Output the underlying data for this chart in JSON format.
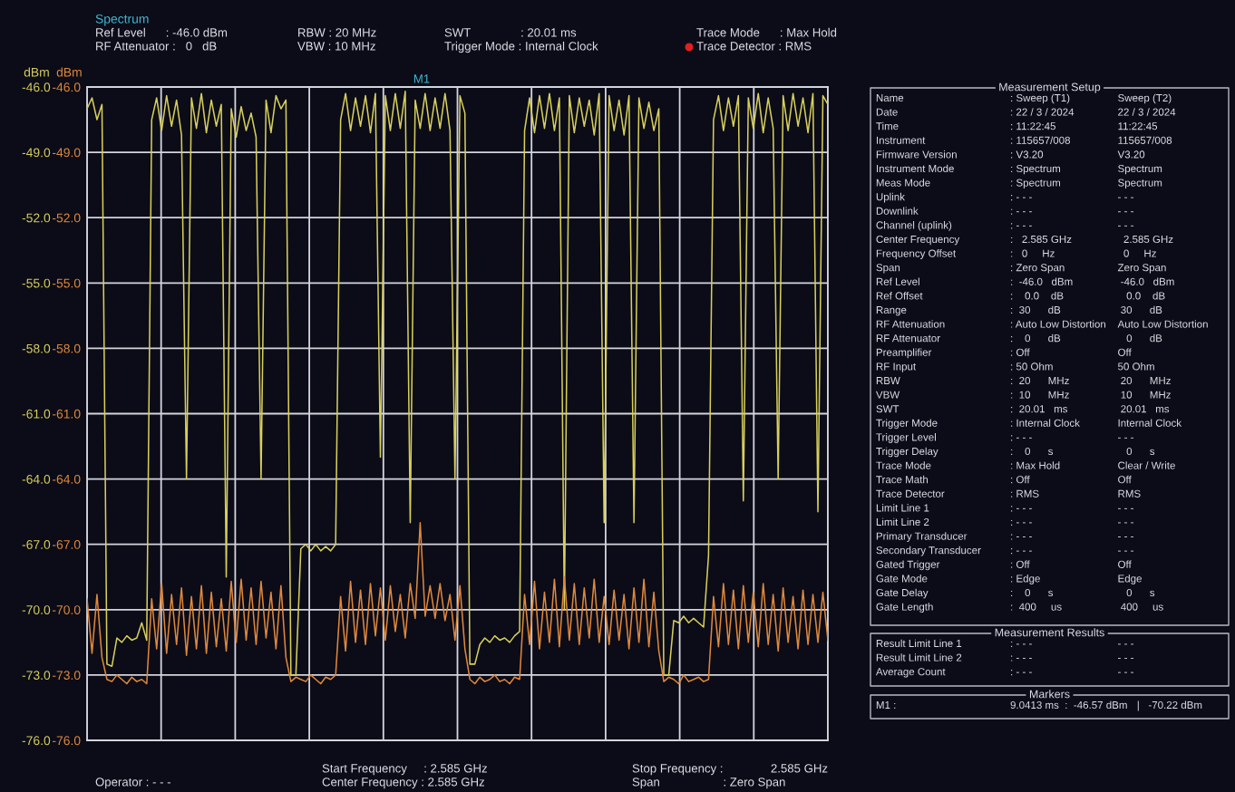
{
  "chart_data": [
    {
      "type": "line",
      "title": "Spectrum",
      "categories": [
        null,
        null,
        null,
        null,
        null,
        null,
        null,
        null,
        null,
        null,
        null,
        null,
        null,
        null,
        null,
        null,
        null,
        null,
        null,
        null,
        null,
        null,
        null,
        null,
        null,
        null,
        null,
        null,
        null,
        null,
        null,
        null,
        null,
        null,
        null,
        null,
        null,
        null,
        null,
        null,
        null,
        null,
        null,
        null,
        null,
        null,
        null,
        null,
        null,
        null,
        null,
        null,
        null,
        null,
        null,
        null,
        null,
        null,
        null,
        null,
        null,
        null,
        null,
        null,
        null,
        null,
        null,
        null,
        null,
        null,
        null,
        null,
        null,
        null,
        null,
        null,
        null,
        null,
        null,
        null,
        null,
        null,
        null,
        null,
        null,
        null,
        null,
        null,
        null,
        null,
        null,
        null,
        null,
        null,
        null,
        null,
        null,
        null,
        null,
        null,
        null,
        null,
        null,
        null,
        null,
        null,
        null,
        null,
        null,
        null,
        null,
        null,
        null,
        null,
        null,
        null,
        null,
        null,
        null,
        null,
        null,
        null,
        null,
        null,
        null,
        null,
        null,
        null,
        null,
        null,
        null,
        null,
        null,
        null,
        null,
        null,
        null,
        null,
        null,
        null,
        null,
        null,
        null,
        null,
        null,
        null,
        null,
        null,
        null,
        null
      ],
      "series": [
        {
          "color": "#d8cf5a",
          "values": [
            -47.0,
            -46.5,
            -47.5,
            -46.8,
            -72.5,
            -72.6,
            -71.3,
            -71.5,
            -71.2,
            -71.4,
            -71.3,
            -70.6,
            -71.4,
            -47.5,
            -46.5,
            -48.0,
            -46.4,
            -47.8,
            -46.6,
            -48.2,
            -64.0,
            -46.5,
            -47.9,
            -46.3,
            -48.1,
            -46.6,
            -47.8,
            -46.8,
            -68.5,
            -47.0,
            -48.3,
            -46.9,
            -48.0,
            -47.2,
            -48.3,
            -64.0,
            -46.6,
            -48.1,
            -46.4,
            -47.0,
            -46.6,
            -73.0,
            -73.0,
            -67.2,
            -67.0,
            -67.3,
            -67.0,
            -67.3,
            -67.1,
            -67.3,
            -67.0,
            -47.5,
            -46.3,
            -48.0,
            -46.5,
            -47.8,
            -46.4,
            -48.1,
            -46.3,
            -63.0,
            -46.4,
            -48.0,
            -46.3,
            -47.9,
            -46.2,
            -66.0,
            -46.6,
            -47.9,
            -46.3,
            -48.0,
            -46.5,
            -47.9,
            -46.3,
            -48.0,
            -64.0,
            -46.4,
            -47.2,
            -72.5,
            -72.5,
            -71.6,
            -71.3,
            -71.5,
            -71.2,
            -71.4,
            -71.3,
            -71.5,
            -71.2,
            -71.0,
            -48.0,
            -46.5,
            -48.1,
            -46.4,
            -47.9,
            -46.3,
            -48.0,
            -46.5,
            -70.0,
            -46.4,
            -48.1,
            -46.5,
            -47.8,
            -46.6,
            -48.2,
            -46.3,
            -66.0,
            -46.4,
            -48.0,
            -46.6,
            -48.2,
            -46.4,
            -66.0,
            -46.5,
            -47.9,
            -46.7,
            -48.0,
            -47.0,
            -73.0,
            -73.0,
            -70.5,
            -70.6,
            -70.3,
            -70.6,
            -70.4,
            -70.6,
            -70.8,
            -67.5,
            -47.5,
            -46.4,
            -48.0,
            -46.5,
            -47.8,
            -46.4,
            -65.0,
            -46.5,
            -47.9,
            -46.3,
            -48.1,
            -46.5,
            -47.9,
            -64.0,
            -46.4,
            -48.0,
            -46.3,
            -47.8,
            -46.5,
            -48.1,
            -46.3,
            -65.5,
            -46.4,
            -46.8
          ]
        },
        {
          "color": "#e0883a",
          "axis": "y2",
          "values": [
            -69.5,
            -72.0,
            -69.3,
            -72.2,
            -73.2,
            -73.3,
            -73.0,
            -73.2,
            -73.4,
            -73.1,
            -73.3,
            -73.2,
            -73.4,
            -69.5,
            -71.8,
            -68.8,
            -72.0,
            -69.3,
            -71.6,
            -69.0,
            -72.1,
            -69.4,
            -71.8,
            -68.9,
            -72.0,
            -69.2,
            -71.7,
            -69.5,
            -71.9,
            -68.7,
            -71.5,
            -68.6,
            -71.4,
            -69.0,
            -71.6,
            -68.7,
            -71.3,
            -69.2,
            -71.8,
            -68.9,
            -72.2,
            -73.3,
            -73.1,
            -73.2,
            -73.3,
            -73.0,
            -73.2,
            -73.4,
            -73.1,
            -73.2,
            -73.0,
            -69.4,
            -71.9,
            -68.7,
            -71.5,
            -69.1,
            -71.6,
            -68.8,
            -71.2,
            -69.0,
            -71.4,
            -68.9,
            -71.0,
            -69.3,
            -71.3,
            -68.8,
            -70.4,
            -66.0,
            -70.3,
            -68.9,
            -70.4,
            -68.8,
            -70.5,
            -69.3,
            -71.4,
            -68.9,
            -71.8,
            -73.2,
            -73.4,
            -73.1,
            -73.3,
            -73.2,
            -73.0,
            -73.3,
            -73.2,
            -73.4,
            -73.1,
            -73.2,
            -69.3,
            -71.6,
            -68.7,
            -71.8,
            -69.2,
            -71.5,
            -68.6,
            -71.7,
            -68.5,
            -71.4,
            -68.8,
            -71.6,
            -69.0,
            -71.3,
            -68.6,
            -71.5,
            -69.4,
            -71.6,
            -69.1,
            -71.4,
            -69.3,
            -71.8,
            -69.0,
            -71.5,
            -68.6,
            -71.7,
            -69.2,
            -71.9,
            -73.3,
            -73.1,
            -73.2,
            -73.4,
            -73.0,
            -73.3,
            -73.2,
            -73.1,
            -73.3,
            -73.2,
            -69.4,
            -71.7,
            -68.8,
            -71.6,
            -69.1,
            -71.8,
            -68.9,
            -71.5,
            -69.2,
            -71.7,
            -68.8,
            -71.6,
            -69.3,
            -71.9,
            -69.0,
            -71.5,
            -69.4,
            -71.8,
            -69.1,
            -71.6,
            -69.3,
            -71.5,
            -69.2,
            -71.4
          ]
        }
      ],
      "ylabel": "dBm",
      "y2label": "dBm",
      "ylim": [
        -76,
        -46
      ],
      "yticks": [
        {
          "value": -46,
          "label": "-46.0"
        },
        {
          "value": -49,
          "label": "-49.0"
        },
        {
          "value": -52,
          "label": "-52.0"
        },
        {
          "value": -55,
          "label": "-55.0"
        },
        {
          "value": -58,
          "label": "-58.0"
        },
        {
          "value": -61,
          "label": "-61.0"
        },
        {
          "value": -64,
          "label": "-64.0"
        },
        {
          "value": -67,
          "label": "-67.0"
        },
        {
          "value": -70,
          "label": "-70.0"
        },
        {
          "value": -73,
          "label": "-73.0"
        },
        {
          "value": -76,
          "label": "-76.0"
        }
      ],
      "y2lim": [
        -76,
        -46
      ],
      "y2ticks": [
        {
          "value": -46,
          "label": "-46.0"
        },
        {
          "value": -49,
          "label": "-49.0"
        },
        {
          "value": -52,
          "label": "-52.0"
        },
        {
          "value": -55,
          "label": "-55.0"
        },
        {
          "value": -58,
          "label": "-58.0"
        },
        {
          "value": -61,
          "label": "-61.0"
        },
        {
          "value": -64,
          "label": "-64.0"
        },
        {
          "value": -67,
          "label": "-67.0"
        },
        {
          "value": -70,
          "label": "-70.0"
        },
        {
          "value": -73,
          "label": "-73.0"
        },
        {
          "value": -76,
          "label": "-76.0"
        }
      ],
      "grid": true,
      "tick_labels": "y",
      "line_style": "solid",
      "marker": "none",
      "annotations": [
        "Ref Level      : -46.0 dBm",
        "RF Attenuator :   0   dB",
        "RBW : 20 MHz",
        "VBW : 10 MHz",
        "SWT               : 20.01 ms",
        "Trigger Mode : Internal Clock",
        "Trace Mode      : Max Hold",
        "Trace Detector : RMS",
        "M1",
        "Start Frequency     : 2.585 GHz",
        "Center Frequency : 2.585 GHz",
        "Stop Frequency :",
        "2.585 GHz",
        "Span                   : Zero Span",
        "Operator : - - -"
      ]
    },
    {
      "type": "other",
      "title": "Measurement Setup",
      "annotations": [
        "Name",
        ": Sweep (T1)",
        "Sweep (T2)",
        "Date",
        ": 22 / 3 / 2024",
        "22 / 3 / 2024",
        "Time",
        ": 11:22:45",
        "11:22:45",
        "Instrument",
        ": 115657/008",
        "115657/008",
        "Firmware Version",
        ": V3.20",
        "V3.20",
        "Instrument Mode",
        ": Spectrum",
        "Spectrum",
        "Meas Mode",
        ": Spectrum",
        "Spectrum",
        "Uplink",
        ": - - -",
        "- - -",
        "Downlink",
        ": - - -",
        "- - -",
        "Channel (uplink)",
        ": - - -",
        "- - -",
        "Center Frequency",
        ":   2.585 GHz",
        "  2.585 GHz",
        "Frequency Offset",
        ":   0     Hz",
        "  0     Hz",
        "Span",
        ": Zero Span",
        "Zero Span",
        "Ref Level",
        ":  -46.0   dBm",
        " -46.0   dBm",
        "Ref Offset",
        ":    0.0    dB",
        "   0.0    dB",
        "Range",
        ":  30      dB",
        " 30      dB",
        "RF Attenuation",
        ": Auto Low Distortion",
        "Auto Low Distortion",
        "RF Attenuator",
        ":    0      dB",
        "   0      dB",
        "Preamplifier",
        ": Off",
        "Off",
        "RF Input",
        ": 50 Ohm",
        "50 Ohm",
        "RBW",
        ":  20      MHz",
        " 20      MHz",
        "VBW",
        ":  10      MHz",
        " 10      MHz",
        "SWT",
        ":  20.01   ms",
        " 20.01   ms",
        "Trigger Mode",
        ": Internal Clock",
        "Internal Clock",
        "Trigger Level",
        ": - - -",
        "- - -",
        "Trigger Delay",
        ":    0      s",
        "   0      s",
        "Trace Mode",
        ": Max Hold",
        "Clear / Write",
        "Trace Math",
        ": Off",
        "Off",
        "Trace Detector",
        ": RMS",
        "RMS",
        "Limit Line 1",
        ": - - -",
        "- - -",
        "Limit Line 2",
        ": - - -",
        "- - -",
        "Primary Transducer",
        ": - - -",
        "- - -",
        "Secondary Transducer",
        ": - - -",
        "- - -",
        "Gated Trigger",
        ": Off",
        "Off",
        "Gate Mode",
        ": Edge",
        "Edge",
        "Gate Delay",
        ":    0      s",
        "   0      s",
        "Gate Length",
        ":  400     us",
        " 400     us"
      ]
    },
    {
      "type": "other",
      "title": "Measurement Results",
      "annotations": [
        "Result Limit Line 1",
        ": - - -",
        "- - -",
        "Result Limit Line 2",
        ": - - -",
        "- - -",
        "Average Count",
        ": - - -",
        "- - -"
      ]
    },
    {
      "type": "other",
      "title": "Markers",
      "annotations": [
        "M1 :",
        "9.0413 ms  :  -46.57 dBm",
        "|   -70.22 dBm"
      ]
    }
  ]
}
